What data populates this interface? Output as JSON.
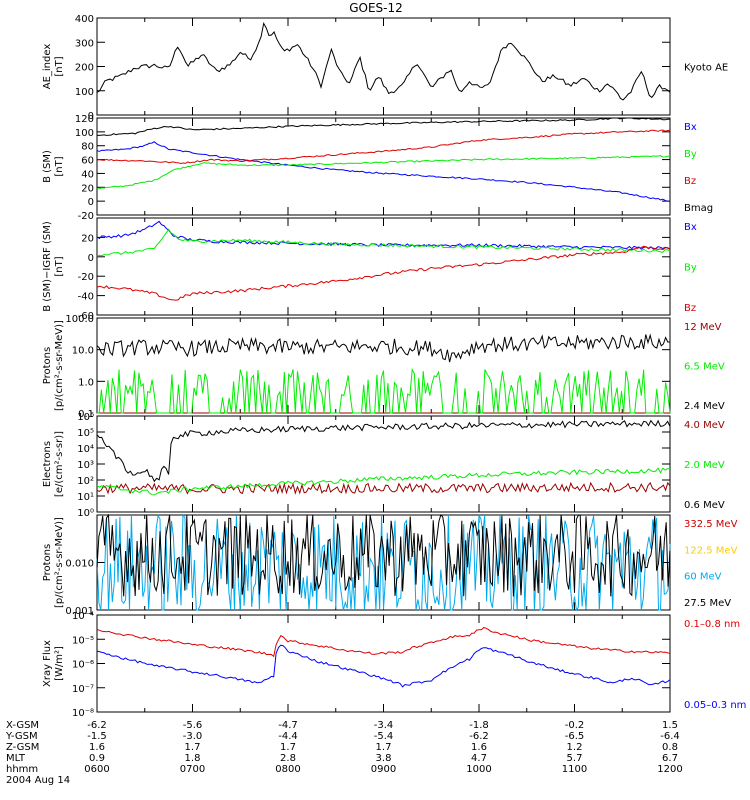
{
  "title": "GOES-12",
  "colors": {
    "black": "#000000",
    "blue": "#0000ff",
    "green": "#00ee00",
    "red": "#dd0000",
    "darkred": "#990000",
    "cyan": "#00aaee",
    "yellow": "#ffcc00",
    "orange_red": "#cc0000"
  },
  "chart_data": [
    {
      "type": "line",
      "ylabel": "AE_index\n[nT]",
      "yscale": "linear",
      "ylim": [
        0,
        400
      ],
      "yticks": [
        "0",
        "100",
        "200",
        "300",
        "400"
      ],
      "ytick_values": [
        0,
        100,
        200,
        300,
        400
      ],
      "series": [
        {
          "name": "Kyoto AE",
          "color": "#000000",
          "x": [
            6.0,
            6.1,
            6.25,
            6.4,
            6.6,
            6.75,
            6.85,
            6.95,
            7.1,
            7.25,
            7.4,
            7.5,
            7.6,
            7.7,
            7.75,
            7.8,
            7.85,
            7.95,
            8.1,
            8.25,
            8.35,
            8.45,
            8.55,
            8.65,
            8.75,
            8.85,
            8.95,
            9.05,
            9.2,
            9.35,
            9.5,
            9.6,
            9.7,
            9.8,
            9.9,
            10.0,
            10.1,
            10.2,
            10.25,
            10.35,
            10.45,
            10.55,
            10.65,
            10.8,
            10.95,
            11.1,
            11.25,
            11.35,
            11.45,
            11.5,
            11.6,
            11.7,
            11.8,
            11.9,
            12.0
          ],
          "y": [
            90,
            140,
            160,
            195,
            205,
            190,
            290,
            200,
            250,
            180,
            210,
            260,
            230,
            300,
            390,
            330,
            340,
            260,
            290,
            200,
            120,
            270,
            170,
            130,
            240,
            100,
            160,
            90,
            120,
            220,
            110,
            150,
            190,
            90,
            140,
            110,
            120,
            230,
            280,
            300,
            250,
            200,
            140,
            160,
            120,
            150,
            100,
            130,
            90,
            60,
            100,
            180,
            70,
            120,
            100
          ]
        }
      ]
    },
    {
      "type": "line",
      "ylabel": "B (SM)\n[nT]",
      "yscale": "linear",
      "ylim": [
        -20,
        120
      ],
      "yticks": [
        "-20",
        "0",
        "20",
        "40",
        "60",
        "80",
        "100",
        "120"
      ],
      "ytick_values": [
        -20,
        0,
        20,
        40,
        60,
        80,
        100,
        120
      ],
      "series": [
        {
          "name": "Bx",
          "color": "#0000ff",
          "x": [
            6.0,
            6.3,
            6.5,
            6.6,
            6.75,
            7.0,
            7.5,
            8.0,
            8.5,
            9.0,
            9.5,
            10.0,
            10.5,
            11.0,
            11.5,
            12.0
          ],
          "y": [
            72,
            75,
            80,
            85,
            75,
            70,
            60,
            52,
            45,
            40,
            36,
            32,
            27,
            20,
            12,
            0
          ]
        },
        {
          "name": "By",
          "color": "#00ee00",
          "x": [
            6.0,
            6.3,
            6.6,
            6.8,
            6.95,
            7.1,
            7.5,
            8.0,
            8.5,
            9.0,
            10.0,
            11.0,
            12.0
          ],
          "y": [
            18,
            22,
            30,
            45,
            50,
            55,
            52,
            52,
            54,
            56,
            60,
            62,
            65
          ]
        },
        {
          "name": "Bz",
          "color": "#dd0000",
          "x": [
            6.0,
            6.5,
            6.9,
            7.2,
            7.5,
            8.0,
            8.5,
            9.0,
            9.5,
            10.0,
            10.5,
            11.0,
            11.5,
            12.0
          ],
          "y": [
            60,
            58,
            55,
            60,
            58,
            62,
            67,
            72,
            78,
            88,
            92,
            97,
            100,
            102
          ]
        },
        {
          "name": "Bmag",
          "color": "#000000",
          "x": [
            6.0,
            6.4,
            6.6,
            6.75,
            7.0,
            7.5,
            8.0,
            8.5,
            9.0,
            10.0,
            11.0,
            11.5,
            12.0
          ],
          "y": [
            95,
            98,
            105,
            108,
            103,
            105,
            108,
            110,
            112,
            115,
            117,
            120,
            118
          ]
        }
      ]
    },
    {
      "type": "line",
      "ylabel": "B (SM)−IGRF (SM)\n[nT]",
      "yscale": "linear",
      "ylim": [
        -60,
        40
      ],
      "yticks": [
        "-60",
        "-40",
        "-20",
        "0",
        "20"
      ],
      "ytick_values": [
        -60,
        -40,
        -20,
        0,
        20
      ],
      "series": [
        {
          "name": "Bx",
          "color": "#0000ff",
          "x": [
            6.0,
            6.3,
            6.5,
            6.65,
            6.8,
            6.95,
            7.2,
            7.5,
            8.0,
            8.5,
            9.0,
            10.0,
            11.0,
            12.0
          ],
          "y": [
            20,
            22,
            28,
            36,
            22,
            18,
            16,
            15,
            14,
            13,
            12,
            12,
            10,
            9
          ]
        },
        {
          "name": "By",
          "color": "#00ee00",
          "x": [
            6.0,
            6.3,
            6.6,
            6.75,
            6.85,
            7.0,
            7.5,
            8.0,
            8.5,
            9.0,
            10.0,
            11.0,
            12.0
          ],
          "y": [
            2,
            4,
            8,
            28,
            18,
            16,
            17,
            15,
            13,
            12,
            10,
            8,
            6
          ]
        },
        {
          "name": "Bz",
          "color": "#dd0000",
          "x": [
            6.0,
            6.3,
            6.6,
            6.8,
            7.0,
            7.5,
            8.0,
            8.5,
            9.0,
            9.5,
            10.0,
            10.5,
            11.0,
            11.5,
            11.7,
            12.0
          ],
          "y": [
            -30,
            -33,
            -38,
            -45,
            -38,
            -35,
            -30,
            -25,
            -18,
            -12,
            -8,
            -3,
            2,
            5,
            10,
            8
          ]
        }
      ]
    },
    {
      "type": "line",
      "ylabel": "Protons\n[p/(cm²-s-sr-MeV)]",
      "yscale": "log",
      "ylim": [
        0.1,
        100
      ],
      "yticks": [
        "0.1",
        "1.0",
        "10.0",
        "100.0"
      ],
      "ytick_values": [
        0.1,
        1,
        10,
        100
      ],
      "series": [
        {
          "name": "12 MeV",
          "color": "#990000",
          "x": [
            6.0,
            12.0
          ],
          "y": [
            0.1,
            0.1
          ]
        },
        {
          "name": "6.5 MeV",
          "color": "#00ee00",
          "x": [
            6.0,
            7.0,
            8.0,
            9.0,
            10.0,
            11.0,
            12.0
          ],
          "y": [
            0.3,
            0.3,
            0.3,
            0.3,
            0.3,
            0.3,
            0.3
          ]
        },
        {
          "name": "2.4 MeV",
          "color": "#000000",
          "x": [
            6.0,
            6.5,
            7.0,
            7.5,
            8.0,
            8.5,
            9.0,
            9.5,
            9.75,
            10.0,
            10.5,
            11.0,
            11.5,
            12.0
          ],
          "y": [
            10,
            12,
            11,
            13,
            12,
            12,
            13,
            11,
            6,
            14,
            15,
            16,
            18,
            17
          ]
        }
      ]
    },
    {
      "type": "line",
      "ylabel": "Electrons\n[e/(cm²-s-sr)]",
      "yscale": "log",
      "ylim": [
        1,
        1000000
      ],
      "yticks": [
        "10⁰",
        "10¹",
        "10²",
        "10³",
        "10⁴",
        "10⁵",
        "10⁶"
      ],
      "ytick_values": [
        1,
        10,
        100,
        1000,
        10000,
        100000,
        1000000
      ],
      "series": [
        {
          "name": "4.0 MeV",
          "color": "#990000",
          "x": [
            6.0,
            6.5,
            7.0,
            7.5,
            8.0,
            8.5,
            9.0,
            10.0,
            11.0,
            12.0
          ],
          "y": [
            30,
            30,
            28,
            28,
            30,
            30,
            30,
            30,
            35,
            35
          ]
        },
        {
          "name": "2.0 MeV",
          "color": "#00ee00",
          "x": [
            6.0,
            6.3,
            6.6,
            6.8,
            7.0,
            7.5,
            8.0,
            8.5,
            9.0,
            9.5,
            10.0,
            11.0,
            12.0
          ],
          "y": [
            40,
            25,
            15,
            20,
            30,
            40,
            60,
            80,
            120,
            150,
            200,
            300,
            400
          ]
        },
        {
          "name": "0.6 MeV",
          "color": "#000000",
          "x": [
            6.0,
            6.1,
            6.2,
            6.3,
            6.4,
            6.5,
            6.6,
            6.65,
            6.7,
            6.75,
            6.8,
            7.0,
            7.5,
            8.0,
            8.5,
            9.0,
            10.0,
            11.0,
            12.0
          ],
          "y": [
            50000,
            10000,
            3000,
            500,
            200,
            400,
            100,
            100,
            500,
            200,
            50000,
            80000,
            120000,
            150000,
            180000,
            200000,
            250000,
            300000,
            350000
          ]
        }
      ]
    },
    {
      "type": "line",
      "ylabel": "Protons\n[p/(cm²-s-sr-MeV)]",
      "yscale": "log",
      "ylim": [
        0.001,
        0.1
      ],
      "yticks": [
        "0.001",
        "0.010"
      ],
      "ytick_values": [
        0.001,
        0.01
      ],
      "series": [
        {
          "name": "332.5 MeV",
          "color": "#cc0000",
          "x": [],
          "y": []
        },
        {
          "name": "122.5 MeV",
          "color": "#ffcc00",
          "x": [],
          "y": []
        },
        {
          "name": "60 MeV",
          "color": "#00aaee",
          "x": [
            6.0,
            7.0,
            8.0,
            9.0,
            10.0,
            11.0,
            12.0
          ],
          "y": [
            0.008,
            0.008,
            0.008,
            0.008,
            0.008,
            0.008,
            0.008
          ]
        },
        {
          "name": "27.5 MeV",
          "color": "#000000",
          "x": [
            6.0,
            7.0,
            8.0,
            9.0,
            10.0,
            11.0,
            12.0
          ],
          "y": [
            0.015,
            0.015,
            0.015,
            0.015,
            0.015,
            0.015,
            0.015
          ]
        }
      ]
    },
    {
      "type": "line",
      "ylabel": "Xray Flux\n[W/m²]",
      "yscale": "log",
      "ylim": [
        1e-08,
        0.0001
      ],
      "yticks": [
        "10⁻⁸",
        "10⁻⁷",
        "10⁻⁶",
        "10⁻⁵",
        "10⁻⁴"
      ],
      "ytick_values": [
        1e-08,
        1e-07,
        1e-06,
        1e-05,
        0.0001
      ],
      "series": [
        {
          "name": "0.1–0.8 nm",
          "color": "#dd0000",
          "x": [
            6.0,
            6.3,
            6.6,
            7.0,
            7.4,
            7.7,
            7.85,
            7.92,
            8.0,
            8.3,
            8.6,
            8.9,
            9.2,
            9.5,
            9.7,
            9.9,
            10.05,
            10.2,
            10.5,
            10.8,
            11.1,
            11.4,
            11.7,
            12.0
          ],
          "y": [
            2.5e-05,
            1.5e-05,
            1e-05,
            6e-06,
            4e-06,
            2.8e-06,
            2.2e-06,
            1.4e-05,
            8.5e-06,
            5.5e-06,
            3.5e-06,
            2.5e-06,
            3e-06,
            7e-06,
            1.2e-05,
            1.5e-05,
            2.8e-05,
            1.8e-05,
            9.5e-06,
            6.5e-06,
            4.5e-06,
            3.5e-06,
            3e-06,
            2.8e-06
          ]
        },
        {
          "name": "0.05–0.3 nm",
          "color": "#0000ff",
          "x": [
            6.0,
            6.3,
            6.6,
            7.0,
            7.4,
            7.7,
            7.85,
            7.92,
            8.0,
            8.3,
            8.6,
            8.9,
            9.2,
            9.5,
            9.7,
            9.9,
            10.05,
            10.2,
            10.5,
            10.8,
            11.1,
            11.4,
            11.6,
            11.8,
            12.0
          ],
          "y": [
            3e-06,
            1.5e-06,
            8e-07,
            4.5e-07,
            2.5e-07,
            1.5e-07,
            3e-07,
            6.5e-06,
            3e-06,
            1.2e-06,
            6e-07,
            3e-07,
            1.2e-07,
            2e-07,
            6e-07,
            1.5e-06,
            4.5e-06,
            3e-06,
            1.2e-06,
            5.5e-07,
            3e-07,
            1.5e-07,
            2.5e-07,
            1.2e-07,
            2e-07
          ]
        }
      ]
    }
  ],
  "xaxis": {
    "ticks": [
      {
        "t": 6.0,
        "x_gsm": "-6.2",
        "y_gsm": "-1.5",
        "z_gsm": "1.6",
        "mlt": "0.9",
        "hhmm": "0600"
      },
      {
        "t": 7.0,
        "x_gsm": "-5.6",
        "y_gsm": "-3.0",
        "z_gsm": "1.7",
        "mlt": "1.8",
        "hhmm": "0700"
      },
      {
        "t": 8.0,
        "x_gsm": "-4.7",
        "y_gsm": "-4.4",
        "z_gsm": "1.7",
        "mlt": "2.8",
        "hhmm": "0800"
      },
      {
        "t": 9.0,
        "x_gsm": "-3.4",
        "y_gsm": "-5.4",
        "z_gsm": "1.7",
        "mlt": "3.8",
        "hhmm": "0900"
      },
      {
        "t": 10.0,
        "x_gsm": "-1.8",
        "y_gsm": "-6.2",
        "z_gsm": "1.6",
        "mlt": "4.7",
        "hhmm": "1000"
      },
      {
        "t": 11.0,
        "x_gsm": "-0.2",
        "y_gsm": "-6.5",
        "z_gsm": "1.2",
        "mlt": "5.7",
        "hhmm": "1100"
      },
      {
        "t": 12.0,
        "x_gsm": "1.5",
        "y_gsm": "-6.4",
        "z_gsm": "0.8",
        "mlt": "6.7",
        "hhmm": "1200"
      }
    ],
    "row_labels": [
      "X-GSM",
      "Y-GSM",
      "Z-GSM",
      "MLT",
      "hhmm"
    ],
    "date": "2004 Aug 14"
  }
}
